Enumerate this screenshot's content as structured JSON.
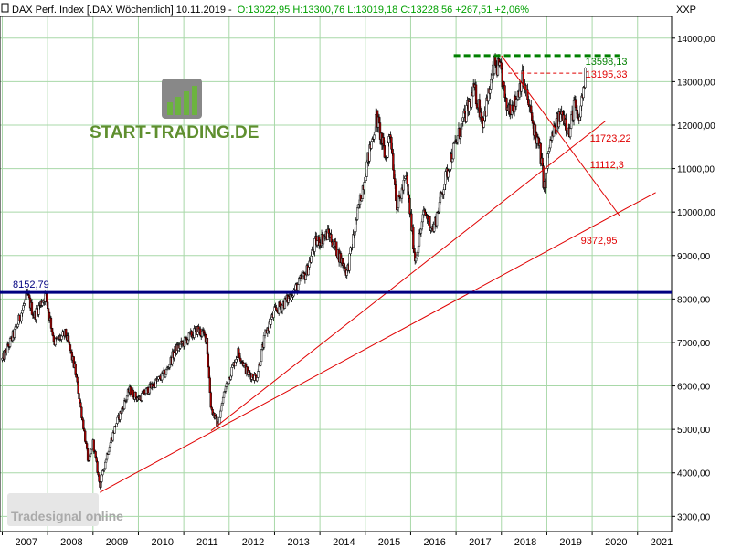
{
  "header": {
    "prefix": "DAX Perf. Index [.DAX Wöchentlich] 10.11.2019 -",
    "ohlc": "O:13022,95 H:13300,76 L:13019,18 C:13228,56 +267,51 +2,06%"
  },
  "axis_unit": "XXP",
  "brand_logo": "START-TRADING.DE",
  "watermark": "Tradesignal online",
  "colors": {
    "background": "#ffffff",
    "grid": "#a8d8a8",
    "support_line": "#000080",
    "trend": "#e00000",
    "resistance": "#008000",
    "candle_up": "#ffffff",
    "candle_down": "#b00000"
  },
  "chart_data": {
    "type": "candlestick",
    "title": "DAX Perf. Index [.DAX Wöchentlich] 10.11.2019",
    "y_ticks": [
      "14000,00",
      "13000,00",
      "12000,00",
      "11000,00",
      "10000,00",
      "9000,00",
      "8000,00",
      "7000,00",
      "6000,00",
      "5000,00",
      "4000,00",
      "3000,00"
    ],
    "ylim": [
      2650,
      14500
    ],
    "x_ticks": [
      "2007",
      "2008",
      "2009",
      "2010",
      "2011",
      "2012",
      "2013",
      "2014",
      "2015",
      "2016",
      "2017",
      "2018",
      "2019",
      "2020",
      "2021"
    ],
    "xlim": [
      2006.95,
      2021.75
    ],
    "grid": true,
    "price_path": [
      [
        2007.0,
        6600
      ],
      [
        2007.3,
        7300
      ],
      [
        2007.55,
        8100
      ],
      [
        2007.7,
        7600
      ],
      [
        2007.95,
        8100
      ],
      [
        2008.15,
        7000
      ],
      [
        2008.4,
        7200
      ],
      [
        2008.6,
        6400
      ],
      [
        2008.8,
        5000
      ],
      [
        2008.9,
        4200
      ],
      [
        2009.0,
        4700
      ],
      [
        2009.15,
        3700
      ],
      [
        2009.3,
        4400
      ],
      [
        2009.5,
        5100
      ],
      [
        2009.8,
        5900
      ],
      [
        2010.0,
        5700
      ],
      [
        2010.4,
        6100
      ],
      [
        2010.6,
        6300
      ],
      [
        2010.8,
        6800
      ],
      [
        2011.0,
        7000
      ],
      [
        2011.3,
        7300
      ],
      [
        2011.5,
        7100
      ],
      [
        2011.6,
        5500
      ],
      [
        2011.75,
        5100
      ],
      [
        2011.9,
        5900
      ],
      [
        2012.2,
        6800
      ],
      [
        2012.4,
        6300
      ],
      [
        2012.6,
        6200
      ],
      [
        2012.8,
        7200
      ],
      [
        2013.0,
        7700
      ],
      [
        2013.3,
        8000
      ],
      [
        2013.5,
        8300
      ],
      [
        2013.7,
        8600
      ],
      [
        2013.9,
        9300
      ],
      [
        2014.2,
        9500
      ],
      [
        2014.6,
        8600
      ],
      [
        2014.8,
        9800
      ],
      [
        2015.0,
        10900
      ],
      [
        2015.25,
        12200
      ],
      [
        2015.45,
        11200
      ],
      [
        2015.55,
        11900
      ],
      [
        2015.7,
        10100
      ],
      [
        2015.9,
        10800
      ],
      [
        2016.1,
        8900
      ],
      [
        2016.3,
        10000
      ],
      [
        2016.5,
        9600
      ],
      [
        2016.7,
        10500
      ],
      [
        2016.9,
        11300
      ],
      [
        2017.1,
        11900
      ],
      [
        2017.4,
        12800
      ],
      [
        2017.6,
        12100
      ],
      [
        2017.85,
        13400
      ],
      [
        2018.0,
        13200
      ],
      [
        2018.1,
        12400
      ],
      [
        2018.3,
        12500
      ],
      [
        2018.45,
        13100
      ],
      [
        2018.55,
        12700
      ],
      [
        2018.7,
        12000
      ],
      [
        2018.85,
        11400
      ],
      [
        2018.95,
        10500
      ],
      [
        2019.05,
        11500
      ],
      [
        2019.2,
        12000
      ],
      [
        2019.35,
        12300
      ],
      [
        2019.5,
        11800
      ],
      [
        2019.6,
        12500
      ],
      [
        2019.7,
        12000
      ],
      [
        2019.8,
        12800
      ],
      [
        2019.86,
        13228
      ]
    ],
    "levels": [
      {
        "name": "support",
        "value": 8152.79,
        "label": "8152,79"
      },
      {
        "name": "resistance",
        "value": 13598.13,
        "label": "13598,13"
      },
      {
        "name": "level",
        "value": 13195.33,
        "label": "13195,33"
      }
    ],
    "annotations": [
      {
        "label": "11723,22",
        "x": 2019.95,
        "y": 11723.22
      },
      {
        "label": "11112,3",
        "x": 2019.95,
        "y": 11112.3
      },
      {
        "label": "9372,95",
        "x": 2019.75,
        "y": 9372.95
      }
    ],
    "trendlines": [
      {
        "name": "long-uptrend",
        "x1": 2009.15,
        "y1": 3550,
        "x2": 2021.4,
        "y2": 10450
      },
      {
        "name": "mid-uptrend",
        "x1": 2011.6,
        "y1": 4970,
        "x2": 2020.3,
        "y2": 12100
      },
      {
        "name": "downtrend",
        "x1": 2018.0,
        "y1": 13598.13,
        "x2": 2020.6,
        "y2": 9920
      }
    ]
  }
}
